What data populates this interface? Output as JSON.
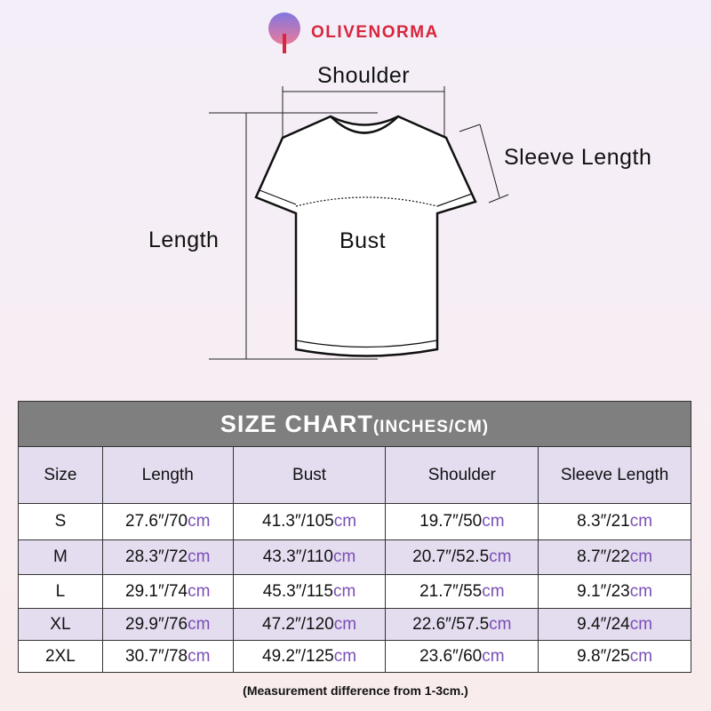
{
  "brand": {
    "name": "OLIVENORMA",
    "color": "#d7263d"
  },
  "diagram": {
    "shoulder": "Shoulder",
    "sleeve_length": "Sleeve Length",
    "length": "Length",
    "bust": "Bust"
  },
  "table": {
    "title": "SIZE CHART",
    "title_unit": "(INCHES/CM)",
    "headers": [
      "Size",
      "Length",
      "Bust",
      "Shoulder",
      "Sleeve Length"
    ],
    "unit": "cm",
    "rows": [
      {
        "size": "S",
        "cells": [
          [
            "27.6″/70",
            "cm"
          ],
          [
            "41.3″/105",
            "cm"
          ],
          [
            "19.7″/50",
            "cm"
          ],
          [
            "8.3″/21",
            "cm"
          ]
        ]
      },
      {
        "size": "M",
        "cells": [
          [
            "28.3″/72",
            "cm"
          ],
          [
            "43.3″/110",
            "cm"
          ],
          [
            "20.7″/52.5",
            "cm"
          ],
          [
            "8.7″/22",
            "cm"
          ]
        ]
      },
      {
        "size": "L",
        "cells": [
          [
            "29.1″/74",
            "cm"
          ],
          [
            "45.3″/115",
            "cm"
          ],
          [
            "21.7″/55",
            "cm"
          ],
          [
            "9.1″/23",
            "cm"
          ]
        ]
      },
      {
        "size": "XL",
        "cells": [
          [
            "29.9″/76",
            "cm"
          ],
          [
            "47.2″/120",
            "cm"
          ],
          [
            "22.6″/57.5",
            "cm"
          ],
          [
            "9.4″/24",
            "cm"
          ]
        ]
      },
      {
        "size": "2XL",
        "cells": [
          [
            "30.7″/78",
            "cm"
          ],
          [
            "49.2″/125",
            "cm"
          ],
          [
            "23.6″/60",
            "cm"
          ],
          [
            "9.8″/25",
            "cm"
          ]
        ]
      }
    ],
    "header_color": "#7f7f7f",
    "stripe_color": "#e4dcef",
    "cm_color": "#7a4fb5"
  },
  "note": "(Measurement difference from 1-3cm.)"
}
